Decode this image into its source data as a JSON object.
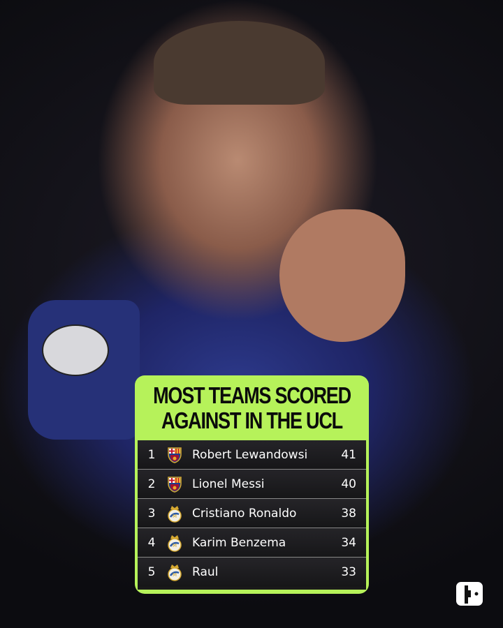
{
  "card": {
    "title_lines": [
      "MOST TEAMS SCORED",
      "AGAINST IN THE UCL"
    ],
    "accent_color": "#b6f25a",
    "rows": [
      {
        "rank": "1",
        "club": "barcelona-crest-icon",
        "name": "Robert Lewandowsi",
        "value": "41"
      },
      {
        "rank": "2",
        "club": "barcelona-crest-icon",
        "name": "Lionel Messi",
        "value": "40"
      },
      {
        "rank": "3",
        "club": "real-madrid-crest-icon",
        "name": "Cristiano Ronaldo",
        "value": "38"
      },
      {
        "rank": "4",
        "club": "real-madrid-crest-icon",
        "name": "Karim Benzema",
        "value": "34"
      },
      {
        "rank": "5",
        "club": "real-madrid-crest-icon",
        "name": "Raul",
        "value": "33"
      }
    ]
  },
  "brand_logo": "publisher-logo-icon"
}
